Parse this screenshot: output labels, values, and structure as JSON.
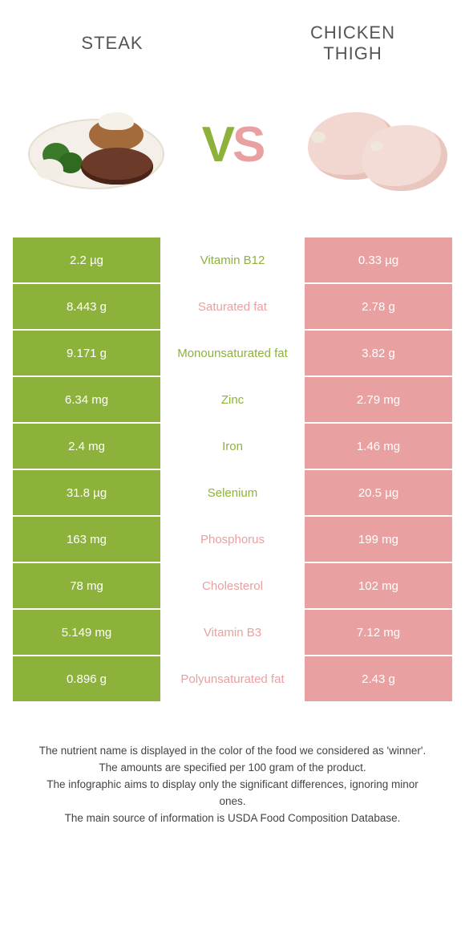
{
  "header": {
    "left": "STEAK",
    "right_line1": "CHICKEN",
    "right_line2": "THIGH"
  },
  "vs": {
    "v": "V",
    "s": "S"
  },
  "colors": {
    "green": "#8db23c",
    "pink": "#e9a0a0",
    "bg": "#ffffff"
  },
  "rows": [
    {
      "left": "2.2 µg",
      "label": "Vitamin B12",
      "right": "0.33 µg",
      "winner": "green"
    },
    {
      "left": "8.443 g",
      "label": "Saturated fat",
      "right": "2.78 g",
      "winner": "pink"
    },
    {
      "left": "9.171 g",
      "label": "Monounsaturated fat",
      "right": "3.82 g",
      "winner": "green"
    },
    {
      "left": "6.34 mg",
      "label": "Zinc",
      "right": "2.79 mg",
      "winner": "green"
    },
    {
      "left": "2.4 mg",
      "label": "Iron",
      "right": "1.46 mg",
      "winner": "green"
    },
    {
      "left": "31.8 µg",
      "label": "Selenium",
      "right": "20.5 µg",
      "winner": "green"
    },
    {
      "left": "163 mg",
      "label": "Phosphorus",
      "right": "199 mg",
      "winner": "pink"
    },
    {
      "left": "78 mg",
      "label": "Cholesterol",
      "right": "102 mg",
      "winner": "pink"
    },
    {
      "left": "5.149 mg",
      "label": "Vitamin B3",
      "right": "7.12 mg",
      "winner": "pink"
    },
    {
      "left": "0.896 g",
      "label": "Polyunsaturated fat",
      "right": "2.43 g",
      "winner": "pink"
    }
  ],
  "footer": {
    "l1": "The nutrient name is displayed in the color of the food we considered as 'winner'.",
    "l2": "The amounts are specified per 100 gram of the product.",
    "l3": "The infographic aims to display only the significant differences, ignoring minor ones.",
    "l4": "The main source of information is USDA Food Composition Database."
  }
}
